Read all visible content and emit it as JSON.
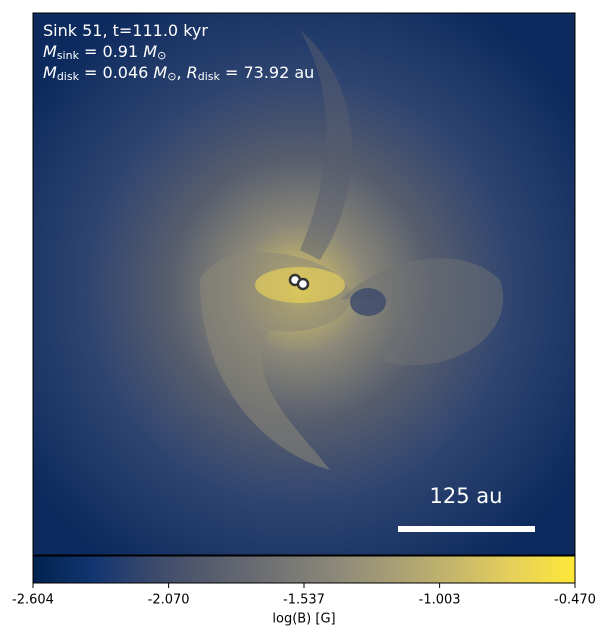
{
  "chart_data": {
    "type": "image",
    "annotations": [
      [
        {
          "text": "Sink 51, t=111.0 kyr"
        }
      ],
      [
        {
          "math": "M"
        },
        {
          "sub": "sink"
        },
        {
          "text": " = 0.91 "
        },
        {
          "math": "M"
        },
        {
          "sub": "⊙"
        }
      ],
      [
        {
          "math": "M"
        },
        {
          "sub": "disk"
        },
        {
          "text": " = 0.046 "
        },
        {
          "math": "M"
        },
        {
          "sub": "⊙"
        },
        {
          "text": ", "
        },
        {
          "math": "R"
        },
        {
          "sub": "disk"
        },
        {
          "text": " = 73.92 au"
        }
      ]
    ],
    "scale_bar": "125 au",
    "colorbar": {
      "label": "log(B) [G]",
      "clim": [
        -2.604,
        -0.47
      ],
      "ticks": [
        -2.604,
        {
          "value": -2.07,
          "label": "-2.070"
        },
        -1.537,
        -1.003,
        {
          "value": -0.47,
          "label": "-0.470"
        }
      ]
    }
  }
}
